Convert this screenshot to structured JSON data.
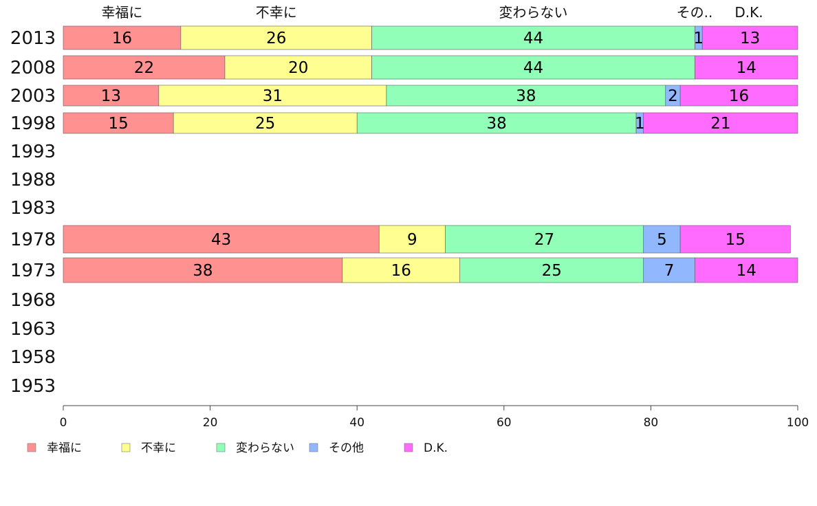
{
  "chart_data": {
    "type": "bar",
    "orientation": "horizontal",
    "stacked": true,
    "categories": [
      "2013",
      "2008",
      "2003",
      "1998",
      "1993",
      "1988",
      "1983",
      "1978",
      "1973",
      "1968",
      "1963",
      "1958",
      "1953"
    ],
    "series": [
      {
        "name": "幸福に",
        "color": "#ff9191",
        "values": [
          16,
          22,
          13,
          15,
          null,
          null,
          null,
          43,
          38,
          null,
          null,
          null,
          null
        ]
      },
      {
        "name": "不幸に",
        "color": "#ffff91",
        "values": [
          26,
          20,
          31,
          25,
          null,
          null,
          null,
          9,
          16,
          null,
          null,
          null,
          null
        ]
      },
      {
        "name": "変わらない",
        "color": "#91ffb8",
        "values": [
          44,
          44,
          38,
          38,
          null,
          null,
          null,
          27,
          25,
          null,
          null,
          null,
          null
        ]
      },
      {
        "name": "その他",
        "color": "#91b8ff",
        "values": [
          1,
          null,
          2,
          1,
          null,
          null,
          null,
          5,
          7,
          null,
          null,
          null,
          null
        ]
      },
      {
        "name": "D.K.",
        "color": "#ff6bff",
        "values": [
          13,
          14,
          16,
          21,
          null,
          null,
          null,
          15,
          14,
          null,
          null,
          null,
          null
        ]
      }
    ],
    "top_labels": [
      "幸福に",
      "不幸に",
      "変わらない",
      "その..",
      "D.K."
    ],
    "xlim": [
      0,
      100
    ],
    "xticks": [
      0,
      20,
      40,
      60,
      80,
      100
    ],
    "grid": false,
    "legend_position": "bottom"
  }
}
